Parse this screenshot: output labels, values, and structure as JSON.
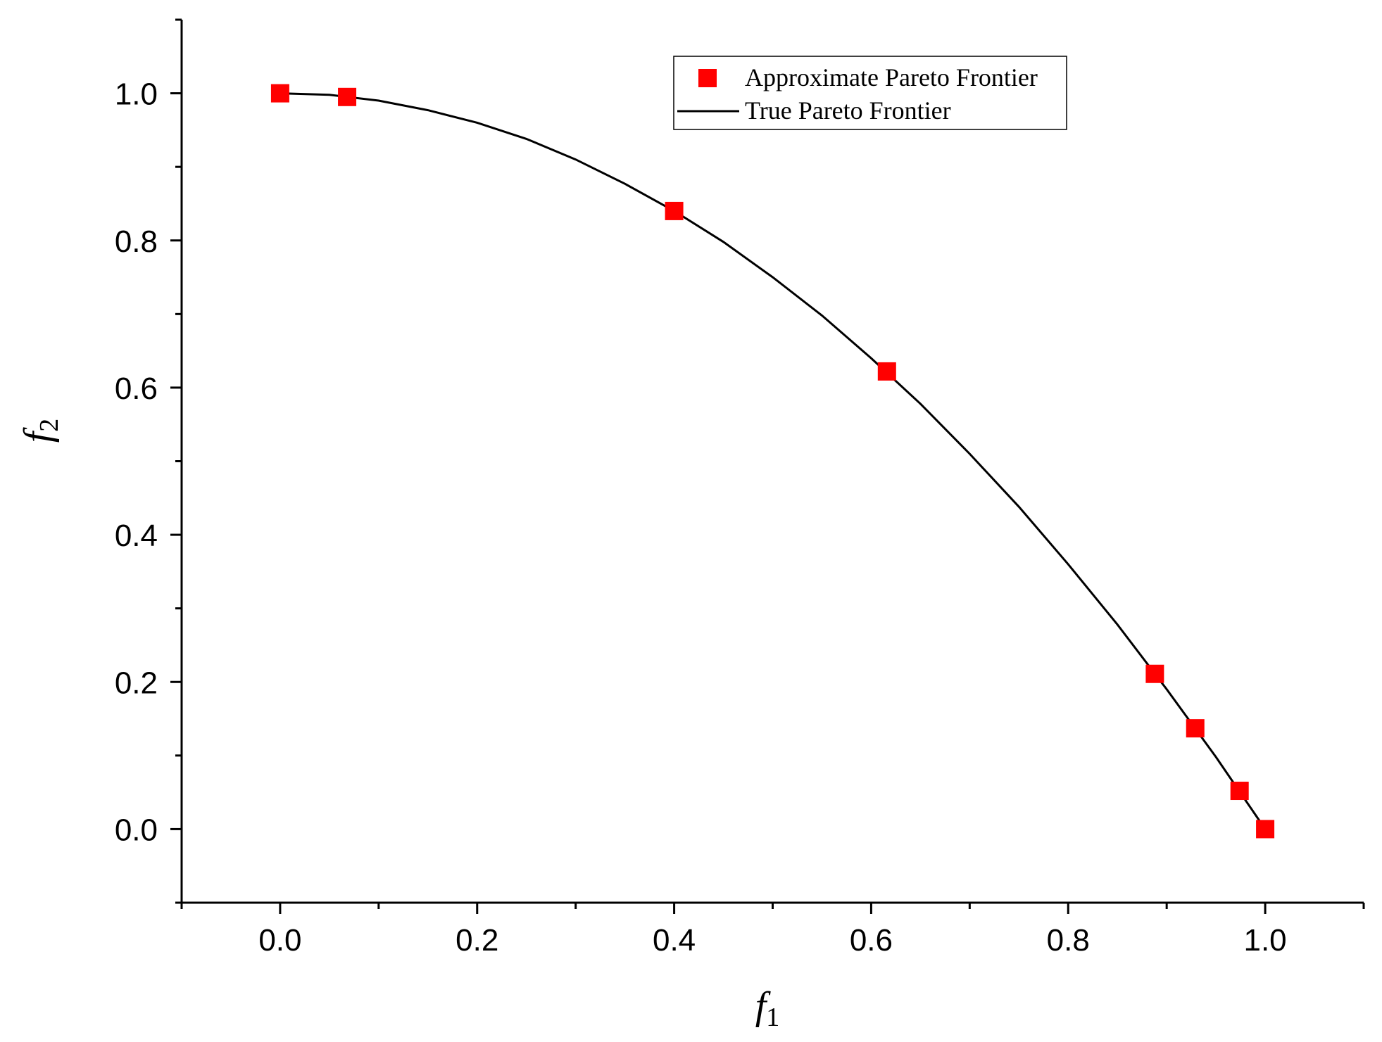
{
  "chart_data": {
    "type": "scatter",
    "title": "",
    "xlabel": {
      "main": "f",
      "sub": "1"
    },
    "ylabel": {
      "main": "f",
      "sub": "2"
    },
    "xlim": [
      -0.1,
      1.1
    ],
    "ylim": [
      -0.1,
      1.1
    ],
    "xticks": [
      0.0,
      0.2,
      0.4,
      0.6,
      0.8,
      1.0
    ],
    "xtick_labels": [
      "0.0",
      "0.2",
      "0.4",
      "0.6",
      "0.8",
      "1.0"
    ],
    "yticks": [
      0.0,
      0.2,
      0.4,
      0.6,
      0.8,
      1.0
    ],
    "ytick_labels": [
      "0.0",
      "0.2",
      "0.4",
      "0.6",
      "0.8",
      "1.0"
    ],
    "grid": false,
    "legend_position": "top-right",
    "series": [
      {
        "name": "Approximate Pareto Frontier",
        "kind": "scatter",
        "marker": "square",
        "color": "#ff0000",
        "points": [
          {
            "x": 0.0,
            "y": 1.0
          },
          {
            "x": 0.068,
            "y": 0.995
          },
          {
            "x": 0.4,
            "y": 0.84
          },
          {
            "x": 0.616,
            "y": 0.622
          },
          {
            "x": 0.888,
            "y": 0.211
          },
          {
            "x": 0.929,
            "y": 0.137
          },
          {
            "x": 0.974,
            "y": 0.052
          },
          {
            "x": 1.0,
            "y": 0.0
          }
        ]
      },
      {
        "name": "True Pareto Frontier",
        "kind": "line",
        "color": "#000000",
        "points": [
          {
            "x": 0.0,
            "y": 1.0
          },
          {
            "x": 0.05,
            "y": 0.998
          },
          {
            "x": 0.1,
            "y": 0.99
          },
          {
            "x": 0.15,
            "y": 0.977
          },
          {
            "x": 0.2,
            "y": 0.96
          },
          {
            "x": 0.25,
            "y": 0.938
          },
          {
            "x": 0.3,
            "y": 0.91
          },
          {
            "x": 0.35,
            "y": 0.877
          },
          {
            "x": 0.4,
            "y": 0.84
          },
          {
            "x": 0.45,
            "y": 0.798
          },
          {
            "x": 0.5,
            "y": 0.75
          },
          {
            "x": 0.55,
            "y": 0.698
          },
          {
            "x": 0.6,
            "y": 0.64
          },
          {
            "x": 0.65,
            "y": 0.578
          },
          {
            "x": 0.7,
            "y": 0.51
          },
          {
            "x": 0.75,
            "y": 0.438
          },
          {
            "x": 0.8,
            "y": 0.36
          },
          {
            "x": 0.85,
            "y": 0.278
          },
          {
            "x": 0.9,
            "y": 0.19
          },
          {
            "x": 0.95,
            "y": 0.098
          },
          {
            "x": 1.0,
            "y": 0.0
          }
        ]
      }
    ]
  }
}
